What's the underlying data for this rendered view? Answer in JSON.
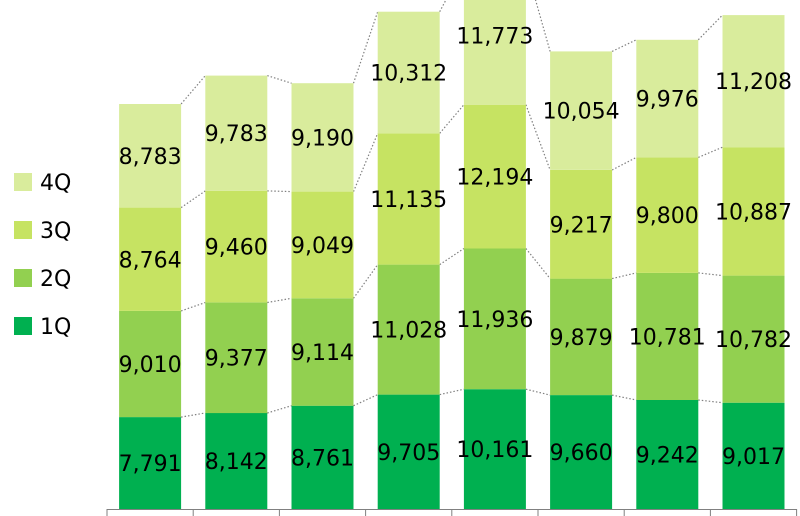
{
  "chart_data": {
    "type": "bar",
    "stacked": true,
    "categories": [
      "",
      "",
      "",
      "",
      "",
      "",
      "",
      ""
    ],
    "series": [
      {
        "name": "1Q",
        "color": "#00b050",
        "values": [
          7791,
          8142,
          8761,
          9705,
          10161,
          9660,
          9242,
          9017
        ],
        "labels": [
          "7,791",
          "8,142",
          "8,761",
          "9,705",
          "10,161",
          "9,660",
          "9,242",
          "9,017"
        ]
      },
      {
        "name": "2Q",
        "color": "#92d050",
        "values": [
          9010,
          9377,
          9114,
          11028,
          11936,
          9879,
          10781,
          10782
        ],
        "labels": [
          "9,010",
          "9,377",
          "9,114",
          "11,028",
          "11,936",
          "9,879",
          "10,781",
          "10,782"
        ]
      },
      {
        "name": "3Q",
        "color": "#c6e362",
        "values": [
          8764,
          9460,
          9049,
          11135,
          12194,
          9217,
          9800,
          10887
        ],
        "labels": [
          "8,764",
          "9,460",
          "9,049",
          "11,135",
          "12,194",
          "9,217",
          "9,800",
          "10,887"
        ]
      },
      {
        "name": "4Q",
        "color": "#d9ec9c",
        "values": [
          8783,
          9783,
          9190,
          10312,
          11773,
          10054,
          9976,
          11208
        ],
        "labels": [
          "8,783",
          "9,783",
          "9,190",
          "10,312",
          "11,773",
          "10,054",
          "9,976",
          "11,208"
        ]
      }
    ],
    "legend": {
      "position": "left",
      "order": [
        "4Q",
        "3Q",
        "2Q",
        "1Q"
      ]
    },
    "series_lines": true,
    "grid": false
  }
}
